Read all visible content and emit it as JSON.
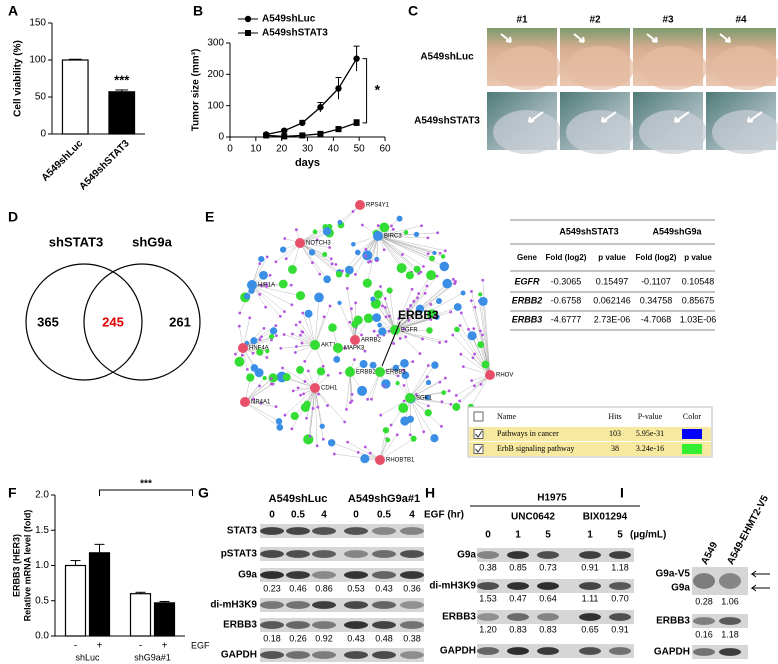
{
  "panel_labels": [
    "A",
    "B",
    "C",
    "D",
    "E",
    "F",
    "G",
    "H",
    "I"
  ],
  "chart_data": [
    {
      "type": "bar",
      "ylabel": "Cell viability (%)",
      "categories": [
        "A549shLuc",
        "A549shSTAT3"
      ],
      "values": [
        100,
        57
      ],
      "errors": [
        1,
        2.5
      ],
      "colors": [
        "#ffffff",
        "#000000"
      ],
      "ylim": [
        0,
        150
      ],
      "yticks": [
        0,
        50,
        100,
        150
      ],
      "annotation": "***"
    },
    {
      "type": "line",
      "xlabel": "days",
      "ylabel": "Tumor size (mm³)",
      "x": [
        14,
        21,
        28,
        35,
        42,
        49
      ],
      "series": [
        {
          "name": "A549shLuc",
          "marker": "circle",
          "color": "#000000",
          "values": [
            8,
            20,
            45,
            95,
            155,
            250
          ],
          "errors": [
            3,
            5,
            8,
            15,
            35,
            40
          ]
        },
        {
          "name": "A549shSTAT3",
          "marker": "square",
          "color": "#000000",
          "values": [
            5,
            2,
            5,
            10,
            25,
            45
          ],
          "errors": [
            2,
            1,
            3,
            4,
            8,
            10
          ]
        }
      ],
      "xlim": [
        0,
        60
      ],
      "xticks": [
        0,
        10,
        20,
        30,
        40,
        50,
        60
      ],
      "ylim": [
        0,
        300
      ],
      "yticks": [
        0,
        100,
        200,
        300
      ],
      "annotation": "*"
    },
    {
      "type": "bar",
      "ylabel": [
        "ERBB3 (HER3)",
        "Relative mRNA level (fold)"
      ],
      "categories": [
        "shLuc",
        "shG9a#1"
      ],
      "series": [
        {
          "name": "-",
          "color": "#ffffff",
          "values": [
            1.0,
            0.6
          ],
          "errors": [
            0.07,
            0.02
          ]
        },
        {
          "name": "+",
          "color": "#000000",
          "values": [
            1.18,
            0.47
          ],
          "errors": [
            0.12,
            0.02
          ]
        }
      ],
      "treatment_label": "EGF",
      "ylim": [
        0,
        2
      ],
      "yticks": [
        {
          "value": 0,
          "label": "0.0"
        },
        0.5,
        {
          "value": 1,
          "label": "1.0"
        },
        1.5,
        {
          "value": 2,
          "label": "2.0"
        }
      ],
      "annotation": "***"
    }
  ],
  "panel_c": {
    "columns": [
      "#1",
      "#2",
      "#3",
      "#4"
    ],
    "rows": [
      "A549shLuc",
      "A549shSTAT3"
    ]
  },
  "venn": {
    "sets": [
      "shSTAT3",
      "shG9a"
    ],
    "only_left": 365,
    "overlap": 245,
    "only_right": 261
  },
  "network": {
    "genes": [
      "RPS4Y1",
      "BIRC3",
      "NOTCH3",
      "HIF1A",
      "HNF4A",
      "AKT1",
      "MAPK3",
      "ARRB2",
      "EGFR",
      "ERBB2",
      "ERBB3",
      "CDH1",
      "NR4A1",
      "SGK1",
      "RHOV",
      "RHOBTB1"
    ],
    "highlight": "ERBB3"
  },
  "table": {
    "groups": [
      "A549shSTAT3",
      "A549shG9a"
    ],
    "header": [
      "Gene",
      "Fold (log2)",
      "p value",
      "Fold (log2)",
      "p value"
    ],
    "rows": [
      [
        "EGFR",
        "-0.3065",
        "0.15497",
        "-0.1107",
        "0.10548"
      ],
      [
        "ERBB2",
        "-0.6758",
        "0.062146",
        "0.34758",
        "0.85675"
      ],
      [
        "ERBB3",
        "-4.6777",
        "2.73E-06",
        "-4.7068",
        "1.03E-06"
      ]
    ]
  },
  "pathways": {
    "header": [
      "Name",
      "Hits",
      "P-value",
      "Color"
    ],
    "rows": [
      {
        "name": "Pathways in cancer",
        "hits": "103",
        "p_value": "5.95e-31",
        "color": "#0000ff"
      },
      {
        "name": "ErbB signaling pathway",
        "hits": "38",
        "p_value": "3.24e-16",
        "color": "#33ee33"
      }
    ]
  },
  "blots": {
    "G": {
      "groups": [
        "A549shLuc",
        "A549shG9a#1"
      ],
      "lanes": [
        "0",
        "0.5",
        "4",
        "0",
        "0.5",
        "4"
      ],
      "unit": "EGF (hr)",
      "rows": [
        {
          "label": "STAT3"
        },
        {
          "label": "pSTAT3"
        },
        {
          "label": "G9a",
          "quant": [
            "0.23",
            "0.46",
            "0.86",
            "0.53",
            "0.43",
            "0.36"
          ]
        },
        {
          "label": "di-mH3K9"
        },
        {
          "label": "ERBB3",
          "quant": [
            "0.18",
            "0.26",
            "0.92",
            "0.43",
            "0.48",
            "0.38"
          ]
        },
        {
          "label": "GAPDH"
        }
      ]
    },
    "H": {
      "title": "H1975",
      "groups": [
        "UNC0642",
        "BIX01294"
      ],
      "lanes": [
        "0",
        "1",
        "5",
        "1",
        "5"
      ],
      "unit": "(µg/mL)",
      "rows": [
        {
          "label": "G9a",
          "quant": [
            "0.38",
            "0.85",
            "0.73",
            "0.91",
            "1.18"
          ]
        },
        {
          "label": "di-mH3K9",
          "quant": [
            "1.53",
            "0.47",
            "0.64",
            "1.11",
            "0.70"
          ]
        },
        {
          "label": "ERBB3",
          "quant": [
            "1.20",
            "0.83",
            "0.83",
            "0.65",
            "0.91"
          ]
        },
        {
          "label": "GAPDH"
        }
      ]
    },
    "I": {
      "lanes": [
        "A549",
        "A549-EHMT2-V5"
      ],
      "rows": [
        {
          "label": "G9a-V5"
        },
        {
          "label": "G9a",
          "quant": [
            "0.28",
            "1.06"
          ]
        },
        {
          "label": "ERBB3",
          "quant": [
            "0.16",
            "1.18"
          ]
        },
        {
          "label": "GAPDH"
        }
      ]
    }
  }
}
